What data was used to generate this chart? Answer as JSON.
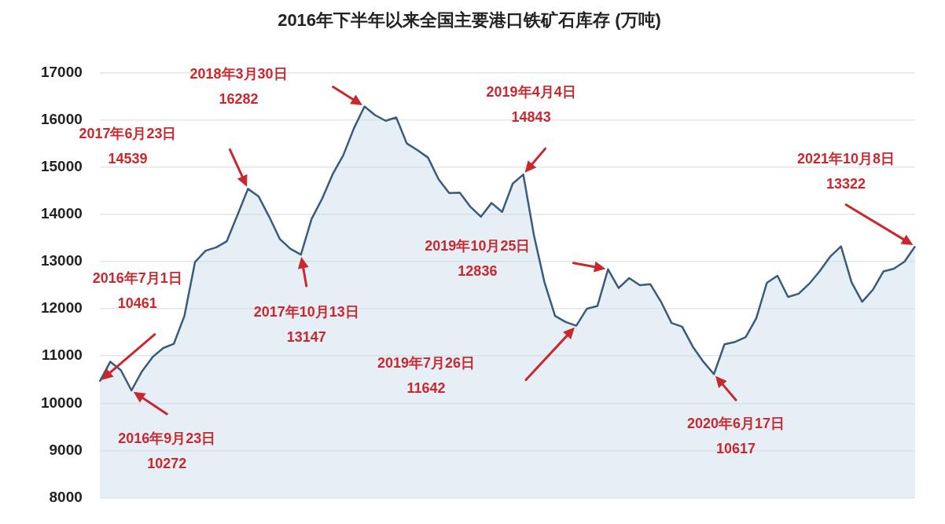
{
  "chart_data": {
    "type": "area",
    "title": "2016年下半年以来全国主要港口铁矿石库存 (万吨)",
    "categories": [
      null,
      null,
      null,
      null,
      null,
      null,
      null,
      null,
      null,
      null,
      null,
      null,
      null,
      null,
      null,
      null,
      null,
      null,
      null,
      null,
      null,
      null,
      null,
      null,
      null,
      null,
      null,
      null,
      null,
      null,
      null,
      null,
      null,
      null,
      null,
      null,
      null,
      null,
      null,
      null,
      null,
      null,
      null,
      null,
      null,
      null,
      null,
      null,
      null,
      null,
      null,
      null,
      null,
      null,
      null,
      null,
      null,
      null,
      null,
      null,
      null,
      null,
      null,
      null,
      null,
      null,
      null,
      null,
      null,
      null,
      null,
      null,
      null,
      null,
      null,
      null,
      null,
      null
    ],
    "series": [
      {
        "color": "#3b5b7e",
        "values": [
          10461,
          10880,
          10700,
          10272,
          10680,
          10980,
          11170,
          11260,
          11850,
          12990,
          13230,
          13300,
          13430,
          13980,
          14539,
          14380,
          13950,
          13480,
          13270,
          13147,
          13900,
          14330,
          14850,
          15250,
          15820,
          16282,
          16100,
          15980,
          16050,
          15500,
          15360,
          15200,
          14740,
          14450,
          14460,
          14160,
          13950,
          14240,
          14050,
          14650,
          14843,
          13560,
          12560,
          11850,
          11720,
          11642,
          12000,
          12060,
          12836,
          12440,
          12650,
          12500,
          12520,
          12150,
          11700,
          11620,
          11200,
          10880,
          10617,
          11250,
          11300,
          11400,
          11800,
          12550,
          12700,
          12250,
          12320,
          12530,
          12800,
          13110,
          13320,
          12560,
          12150,
          12400,
          12790,
          12850,
          13000,
          13322
        ]
      }
    ],
    "ylim": [
      8000,
      17000
    ],
    "yticks": [
      8000,
      9000,
      10000,
      11000,
      12000,
      13000,
      14000,
      15000,
      16000,
      17000
    ],
    "grid": "y",
    "tick_labels": "y",
    "annotations": [
      "2016年7月1日\n10461",
      "2016年9月23日\n10272",
      "2017年6月23日\n14539",
      "2017年10月13日\n13147",
      "2018年3月30日\n16282",
      "2019年4月4日\n14843",
      "2019年7月26日\n11642",
      "2019年10月25日\n12836",
      "2020年6月17日\n10617",
      "2021年10月8日\n13322"
    ]
  }
}
